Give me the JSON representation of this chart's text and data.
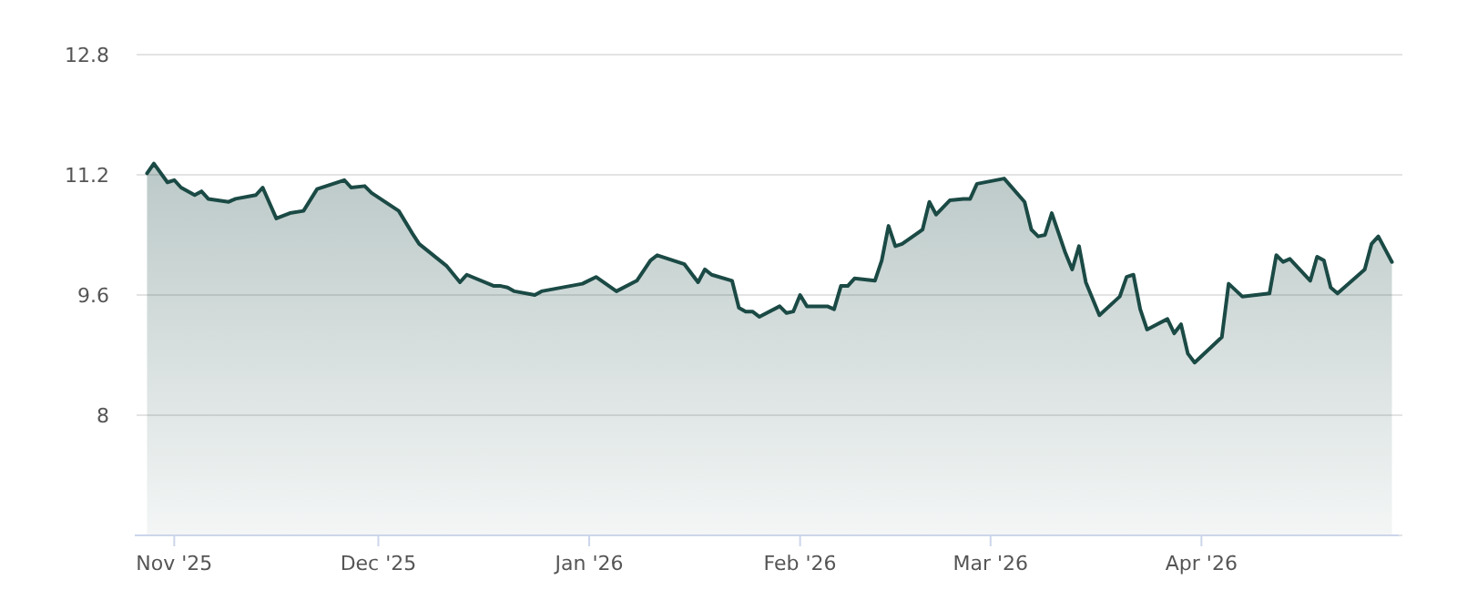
{
  "chart_data": {
    "type": "area",
    "grid": "y",
    "marker": "none",
    "line_style": "solid",
    "xlim": [
      "2025-10-27",
      "2026-04-30"
    ],
    "ylim": [
      6.4,
      12.8
    ],
    "yticks": [
      {
        "value": 6.4,
        "label": null
      },
      8,
      9.6,
      11.2,
      12.8
    ],
    "xticks": [
      {
        "value": "2025-11-01",
        "label": "Nov '25"
      },
      {
        "value": "2025-12-01",
        "label": "Dec '25"
      },
      {
        "value": "2026-01-01",
        "label": "Jan '26"
      },
      {
        "value": "2026-02-01",
        "label": "Feb '26"
      },
      {
        "value": "2026-03-01",
        "label": "Mar '26"
      },
      {
        "value": "2026-04-01",
        "label": "Apr '26"
      }
    ],
    "series": [
      {
        "color": "#1b4a45",
        "x": [
          "2025-10-28",
          "2025-10-29",
          "2025-10-31",
          "2025-11-01",
          "2025-11-02",
          "2025-11-04",
          "2025-11-05",
          "2025-11-06",
          "2025-11-09",
          "2025-11-10",
          "2025-11-13",
          "2025-11-14",
          "2025-11-16",
          "2025-11-18",
          "2025-11-20",
          "2025-11-22",
          "2025-11-26",
          "2025-11-27",
          "2025-11-29",
          "2025-11-30",
          "2025-12-04",
          "2025-12-06",
          "2025-12-07",
          "2025-12-11",
          "2025-12-13",
          "2025-12-14",
          "2025-12-18",
          "2025-12-19",
          "2025-12-20",
          "2025-12-21",
          "2025-12-24",
          "2025-12-25",
          "2025-12-31",
          "2026-01-02",
          "2026-01-05",
          "2026-01-08",
          "2026-01-10",
          "2026-01-11",
          "2026-01-15",
          "2026-01-17",
          "2026-01-18",
          "2026-01-19",
          "2026-01-22",
          "2026-01-23",
          "2026-01-24",
          "2026-01-25",
          "2026-01-26",
          "2026-01-29",
          "2026-01-30",
          "2026-01-31",
          "2026-02-01",
          "2026-02-02",
          "2026-02-05",
          "2026-02-06",
          "2026-02-07",
          "2026-02-08",
          "2026-02-09",
          "2026-02-12",
          "2026-02-13",
          "2026-02-14",
          "2026-02-15",
          "2026-02-16",
          "2026-02-19",
          "2026-02-20",
          "2026-02-21",
          "2026-02-23",
          "2026-02-25",
          "2026-02-26",
          "2026-02-27",
          "2026-03-03",
          "2026-03-06",
          "2026-03-07",
          "2026-03-08",
          "2026-03-09",
          "2026-03-10",
          "2026-03-12",
          "2026-03-13",
          "2026-03-14",
          "2026-03-15",
          "2026-03-17",
          "2026-03-20",
          "2026-03-21",
          "2026-03-22",
          "2026-03-23",
          "2026-03-24",
          "2026-03-27",
          "2026-03-28",
          "2026-03-29",
          "2026-03-30",
          "2026-03-31",
          "2026-04-04",
          "2026-04-05",
          "2026-04-07",
          "2026-04-11",
          "2026-04-12",
          "2026-04-13",
          "2026-04-14",
          "2026-04-17",
          "2026-04-18",
          "2026-04-19",
          "2026-04-20",
          "2026-04-21",
          "2026-04-25",
          "2026-04-26",
          "2026-04-27",
          "2026-04-29"
        ],
        "values": [
          11.22,
          11.35,
          11.1,
          11.13,
          11.03,
          10.93,
          10.98,
          10.88,
          10.84,
          10.88,
          10.93,
          11.03,
          10.62,
          10.69,
          10.72,
          11.01,
          11.13,
          11.03,
          11.05,
          10.96,
          10.72,
          10.42,
          10.28,
          9.99,
          9.77,
          9.87,
          9.72,
          9.72,
          9.7,
          9.65,
          9.6,
          9.65,
          9.75,
          9.84,
          9.65,
          9.79,
          10.06,
          10.13,
          10.01,
          9.77,
          9.94,
          9.87,
          9.79,
          9.43,
          9.38,
          9.38,
          9.31,
          9.45,
          9.36,
          9.38,
          9.6,
          9.45,
          9.45,
          9.41,
          9.72,
          9.72,
          9.82,
          9.79,
          10.06,
          10.52,
          10.25,
          10.28,
          10.47,
          10.84,
          10.67,
          10.86,
          10.88,
          10.88,
          11.08,
          11.15,
          10.84,
          10.47,
          10.38,
          10.4,
          10.69,
          10.16,
          9.94,
          10.25,
          9.77,
          9.33,
          9.58,
          9.84,
          9.87,
          9.41,
          9.14,
          9.28,
          9.09,
          9.21,
          8.82,
          8.7,
          9.04,
          9.75,
          9.58,
          9.62,
          10.13,
          10.04,
          10.08,
          9.79,
          10.11,
          10.06,
          9.7,
          9.62,
          9.94,
          10.28,
          10.38,
          10.04
        ]
      }
    ]
  }
}
